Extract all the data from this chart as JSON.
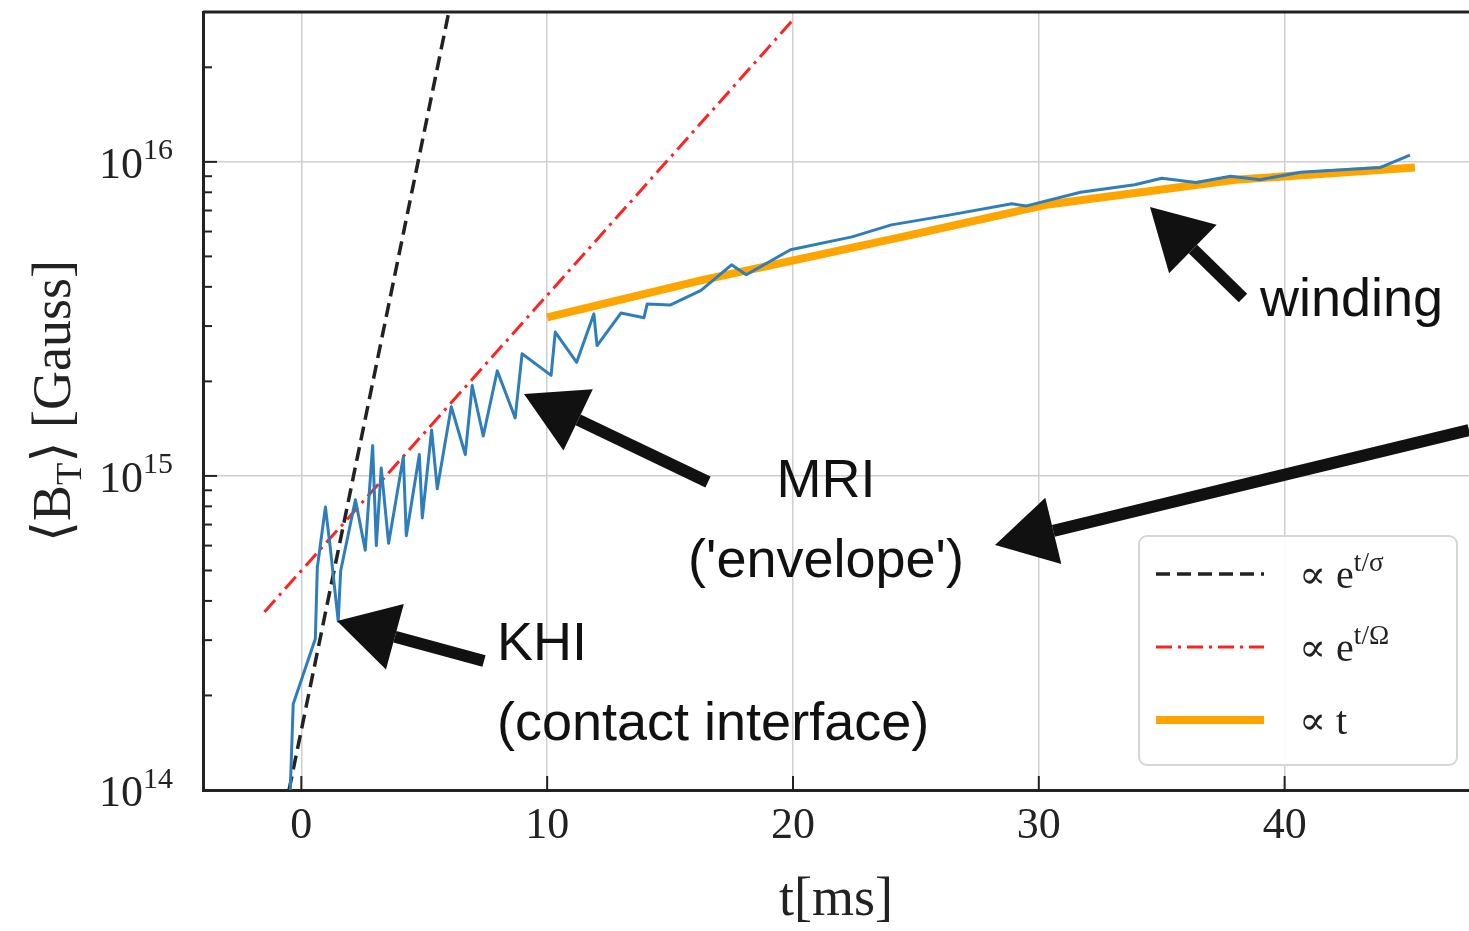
{
  "chart_data": {
    "type": "line",
    "xlabel": "t[ms]",
    "ylabel": "⟨B$_{T}$⟩ [Gauss]",
    "log": "y",
    "grid": true,
    "legend": "bottom right",
    "marker": "none",
    "xlim": [
      -4,
      47.5
    ],
    "xticks": [
      0,
      10,
      20,
      30,
      40
    ],
    "ylim": [
      100000000000000.0,
      3e+16
    ],
    "yticks": [
      {
        "value": 100000000000000.0,
        "label": "10$^{14}$"
      },
      {
        "value": 200000000000000.0,
        "label": null
      },
      {
        "value": 300000000000000.0,
        "label": null
      },
      {
        "value": 400000000000000.0,
        "label": null
      },
      {
        "value": 500000000000000.0,
        "label": null
      },
      {
        "value": 600000000000000.0,
        "label": null
      },
      {
        "value": 700000000000000.0,
        "label": null
      },
      {
        "value": 800000000000000.0,
        "label": null
      },
      {
        "value": 900000000000000.0,
        "label": null
      },
      {
        "value": 1000000000000000.0,
        "label": "10$^{15}$"
      },
      {
        "value": 2000000000000000.0,
        "label": null
      },
      {
        "value": 3000000000000000.0,
        "label": null
      },
      {
        "value": 4000000000000000.0,
        "label": null
      },
      {
        "value": 5000000000000000.0,
        "label": null
      },
      {
        "value": 6000000000000000.0,
        "label": null
      },
      {
        "value": 7000000000000000.0,
        "label": null
      },
      {
        "value": 8000000000000000.0,
        "label": null
      },
      {
        "value": 9000000000000000.0,
        "label": null
      },
      {
        "value": 1e+16,
        "label": "10$^{16}$"
      },
      {
        "value": 2e+16,
        "label": null
      }
    ],
    "series": [
      {
        "color": "#2f7ebc",
        "line_style": "solid",
        "x": [
          -0.45,
          -0.33,
          0.57,
          0.65,
          0.98,
          1.17,
          1.5,
          1.6,
          2.2,
          2.6,
          2.9,
          3.05,
          3.25,
          3.55,
          4.15,
          4.27,
          4.8,
          4.92,
          5.3,
          5.53,
          6.1,
          6.67,
          6.95,
          7.4,
          7.97,
          8.7,
          8.98,
          10.16,
          10.33,
          11.2,
          11.9,
          12.03,
          13.0,
          13.94,
          14.07,
          15.0,
          16.26,
          17.5,
          18.1,
          19.9,
          22.4,
          24,
          26.4,
          28.9,
          29.5,
          31.7,
          33.9,
          35,
          36.4,
          37.8,
          39,
          40.65,
          43.9,
          45.1
        ],
        "values": [
          100000000000000.0,
          188000000000000.0,
          303000000000000.0,
          510000000000000.0,
          796000000000000.0,
          598000000000000.0,
          345000000000000.0,
          498000000000000.0,
          840000000000000.0,
          580000000000000.0,
          1250000000000000.0,
          600000000000000.0,
          1060000000000000.0,
          610000000000000.0,
          1150000000000000.0,
          645000000000000.0,
          1170000000000000.0,
          735000000000000.0,
          1400000000000000.0,
          910000000000000.0,
          1660000000000000.0,
          1170000000000000.0,
          1940000000000000.0,
          1340000000000000.0,
          2160000000000000.0,
          1530000000000000.0,
          2450000000000000.0,
          2090000000000000.0,
          2870000000000000.0,
          2300000000000000.0,
          3280000000000000.0,
          2600000000000000.0,
          3300000000000000.0,
          3190000000000000.0,
          3530000000000000.0,
          3500000000000000.0,
          3900000000000000.0,
          4700000000000000.0,
          4370000000000000.0,
          5250000000000000.0,
          5770000000000000.0,
          6300000000000000.0,
          6780000000000000.0,
          7350000000000000.0,
          7240000000000000.0,
          8000000000000000.0,
          8450000000000000.0,
          8870000000000000.0,
          8600000000000000.0,
          9000000000000000.0,
          8770000000000000.0,
          9270000000000000.0,
          9600000000000000.0,
          1.05e+16
        ]
      },
      {
        "name": "∝ e$^{t/σ}$",
        "color": "#222222",
        "line_style": "dashed",
        "x": [
          -0.5,
          6
        ],
        "values": [
          100000000000000.0,
          3e+16
        ]
      },
      {
        "name": "∝ e$^{t/Ω}$",
        "color": "#ff2222",
        "line_style": "dashdot",
        "x": [
          -1.5,
          20
        ],
        "values": [
          369000000000000.0,
          2.83e+16
        ]
      },
      {
        "name": "∝ t",
        "color": "#ffa500",
        "line_style": "solid",
        "x": [
          10,
          16.3,
          24.4,
          30.3,
          38,
          45.3
        ],
        "values": [
          3200000000000000.0,
          4200000000000000.0,
          5760000000000000.0,
          7300000000000000.0,
          8770000000000000.0,
          9600000000000000.0
        ]
      }
    ],
    "annotations": [
      "winding",
      "MRI\n('envelope')",
      "KHI\n(contact interface)"
    ]
  }
}
